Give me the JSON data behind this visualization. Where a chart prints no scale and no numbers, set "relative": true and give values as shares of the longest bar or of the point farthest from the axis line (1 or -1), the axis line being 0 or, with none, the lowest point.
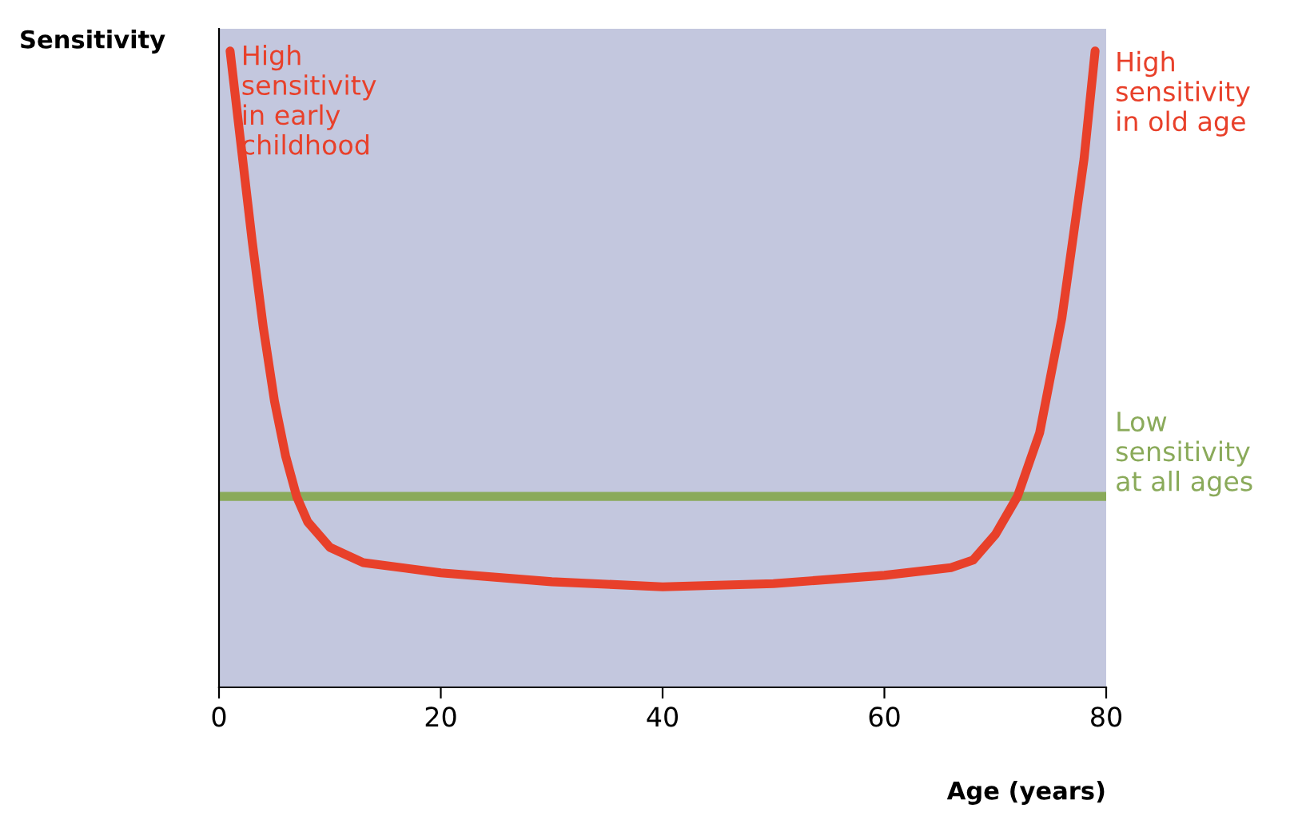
{
  "chart_data": {
    "type": "line",
    "relative": true,
    "ylabel": "Sensitivity",
    "xlabel": "Age (years)",
    "xlim": [
      0,
      80
    ],
    "xticks": [
      0,
      20,
      40,
      60,
      80
    ],
    "grid": false,
    "legend": false,
    "marker": "none",
    "line_style": "solid",
    "annotations": [
      {
        "text": "High\nsensitivity\nin early\nchildhood",
        "x": 1,
        "y": 1.0
      }
    ],
    "series": [
      {
        "name": "High\nsensitivity\nin old age",
        "color": "#e8402a",
        "x": [
          1,
          2,
          3,
          4,
          5,
          6,
          7,
          8,
          10,
          13,
          20,
          30,
          40,
          50,
          60,
          66,
          68,
          70,
          72,
          74,
          76,
          78,
          79
        ],
        "values": [
          1.0,
          0.85,
          0.7,
          0.565,
          0.45,
          0.364,
          0.3,
          0.26,
          0.22,
          0.196,
          0.18,
          0.166,
          0.158,
          0.163,
          0.176,
          0.188,
          0.2,
          0.24,
          0.3,
          0.4,
          0.58,
          0.83,
          1.0
        ]
      },
      {
        "name": "Low\nsensitivity\nat all ages",
        "color": "#8aaa5a",
        "x": [
          0,
          80
        ],
        "values": [
          0.3,
          0.3
        ]
      }
    ]
  }
}
